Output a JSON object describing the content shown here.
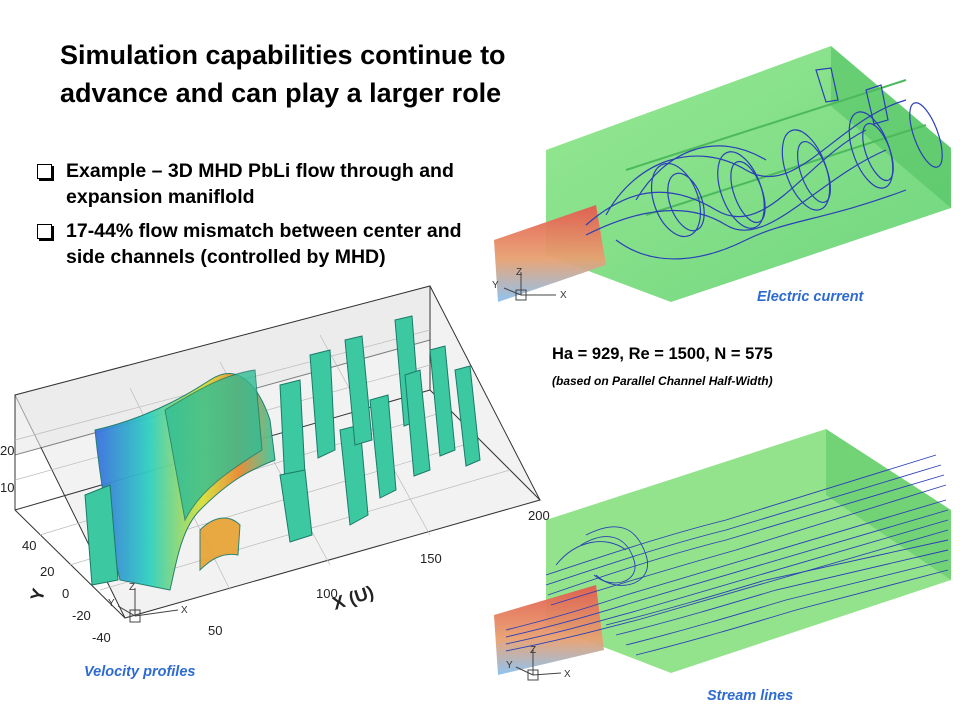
{
  "slide": {
    "title_line1": "Simulation capabilities continue to",
    "title_line2": "advance and can play a larger role",
    "bullets": [
      "Example – 3D MHD PbLi flow through and expansion maniflold",
      "17-44% flow mismatch between center and side channels (controlled by MHD)"
    ],
    "params": "Ha = 929, Re = 1500, N = 575",
    "params_note": "(based on Parallel Channel Half-Width)"
  },
  "figures": {
    "electric_current": {
      "caption": "Electric current",
      "axis_labels": [
        "Z",
        "Y",
        "X"
      ]
    },
    "stream_lines": {
      "caption": "Stream lines",
      "axis_labels": [
        "Z",
        "Y",
        "X"
      ]
    },
    "velocity_profiles": {
      "caption": "Velocity profiles",
      "axis_labels": [
        "Z",
        "Y",
        "X"
      ],
      "x_axis_label": "X (U)",
      "y_axis_label": "Y",
      "x_ticks": [
        "50",
        "100",
        "150",
        "200"
      ],
      "y_ticks": [
        "-40",
        "-20",
        "0",
        "20",
        "40"
      ],
      "z_ticks": [
        "10",
        "20"
      ]
    }
  },
  "colors": {
    "caption": "#2e6bd1",
    "slab": "#7fe07a",
    "inlet": "#e0504a",
    "lines": "#2a3fb8",
    "profile": "#3cc8a0"
  }
}
